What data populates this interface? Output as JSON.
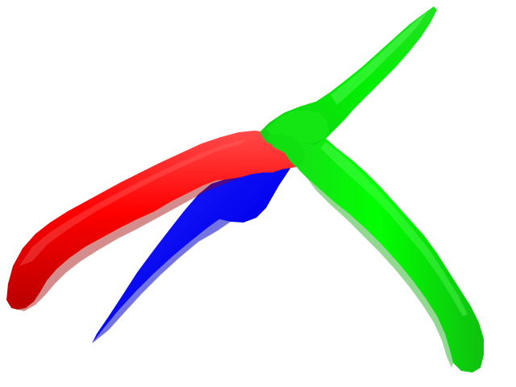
{
  "scene": {
    "background": "#ffffff",
    "segments": [
      {
        "name": "red-branch",
        "color": "#ff0000"
      },
      {
        "name": "blue-branch",
        "color": "#0000ff"
      },
      {
        "name": "green-branch",
        "color": "#00ff00"
      }
    ]
  }
}
